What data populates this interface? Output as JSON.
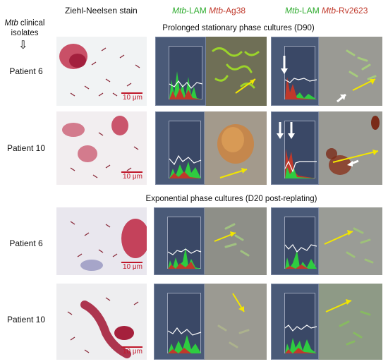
{
  "header": {
    "isolates_line1_italic": "Mtb",
    "isolates_line1_rest": " clinical",
    "isolates_line2": "isolates",
    "arrow_glyph": "⇩",
    "zn_stain": "Ziehl-Neelsen stain",
    "col2_a": "Mtb",
    "col2_b": "-LAM ",
    "col2_c": "Mtb",
    "col2_d": "-Ag38",
    "col3_a": "Mtb",
    "col3_b": "-LAM ",
    "col3_c": "Mtb",
    "col3_d": "-Rv2623"
  },
  "sections": {
    "stationary": "Prolonged stationary phase cultures (D90)",
    "exponential": "Exponential phase cultures (D20 post-replating)"
  },
  "rows": {
    "r1": "Patient 6",
    "r2": "Patient 10",
    "r3": "Patient 6",
    "r4": "Patient 10"
  },
  "scale_label": "10 μm",
  "colors": {
    "lam_green": "#2eab2e",
    "antigen_red": "#c0392b",
    "arrow_yellow": "#f2e600",
    "arrow_white": "#ffffff"
  }
}
